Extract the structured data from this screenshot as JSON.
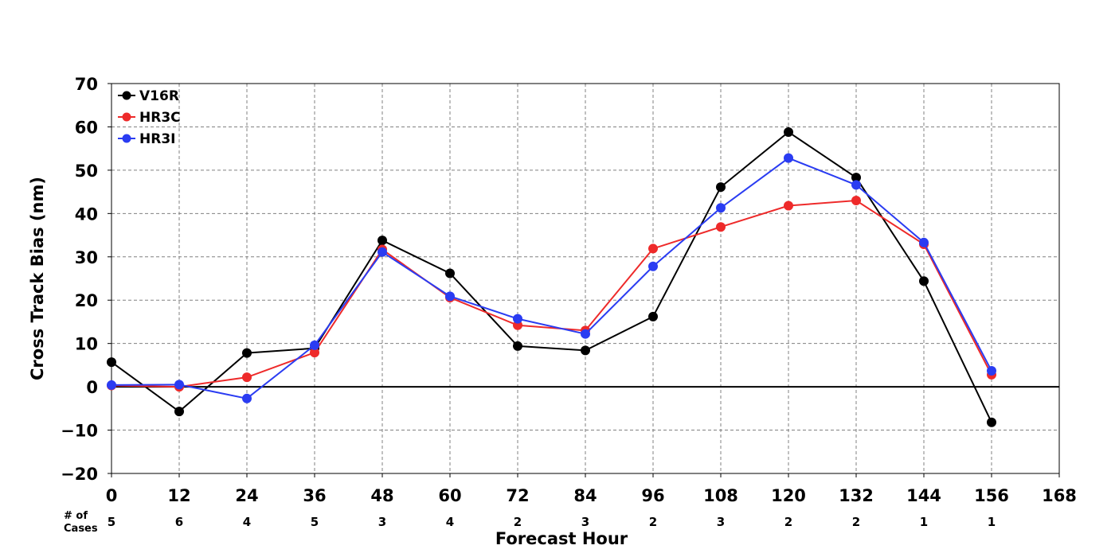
{
  "chart_data": {
    "type": "line",
    "title": "",
    "xlabel": "Forecast Hour",
    "ylabel": "Cross Track Bias (nm)",
    "xlim": [
      0,
      168
    ],
    "ylim": [
      -20,
      70
    ],
    "x_ticks": [
      0,
      12,
      24,
      36,
      48,
      60,
      72,
      84,
      96,
      108,
      120,
      132,
      144,
      156,
      168
    ],
    "y_ticks": [
      -20,
      -10,
      0,
      10,
      20,
      30,
      40,
      50,
      60,
      70
    ],
    "grid": true,
    "legend_position": "top-left",
    "x": [
      0,
      12,
      24,
      36,
      48,
      60,
      72,
      84,
      96,
      108,
      120,
      132,
      144,
      156
    ],
    "series": [
      {
        "name": "V16R",
        "color": "#000000",
        "values": [
          5.7,
          -5.7,
          7.8,
          8.9,
          33.8,
          26.2,
          9.4,
          8.4,
          16.2,
          46.1,
          58.8,
          48.3,
          24.4,
          -8.2
        ]
      },
      {
        "name": "HR3C",
        "color": "#ee2a2a",
        "values": [
          0.3,
          0.0,
          2.2,
          7.9,
          31.7,
          20.6,
          14.2,
          13.0,
          31.9,
          36.9,
          41.8,
          43.0,
          32.9,
          2.8
        ]
      },
      {
        "name": "HR3I",
        "color": "#2a3cf2",
        "values": [
          0.4,
          0.5,
          -2.7,
          9.6,
          31.1,
          20.9,
          15.7,
          12.2,
          27.8,
          41.3,
          52.8,
          46.6,
          33.3,
          3.7
        ]
      }
    ],
    "cases": {
      "header": [
        "# of",
        "Cases"
      ],
      "values": [
        5,
        6,
        4,
        5,
        3,
        4,
        2,
        3,
        2,
        3,
        2,
        2,
        1,
        1
      ]
    }
  }
}
